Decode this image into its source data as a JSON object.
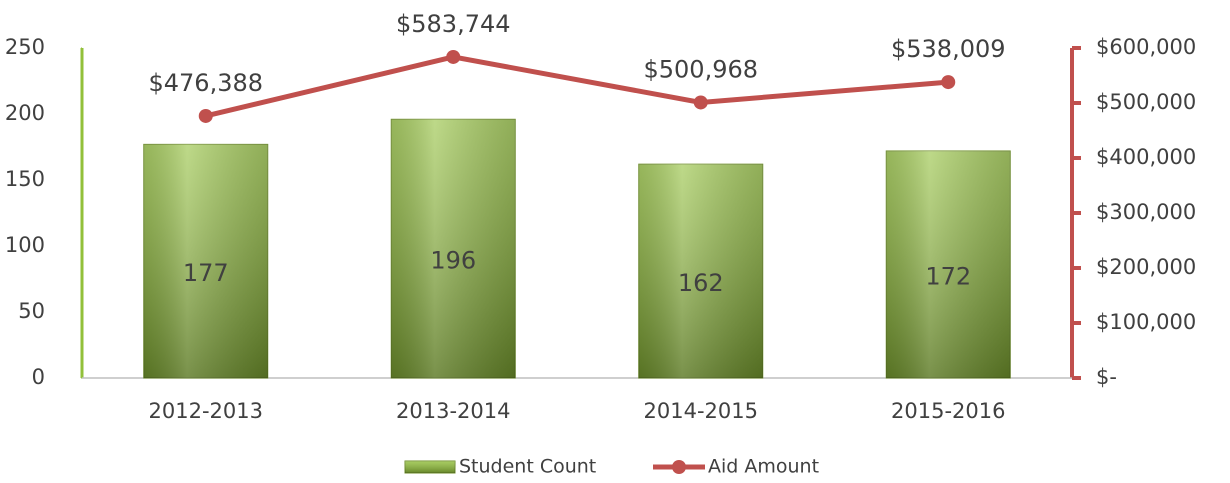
{
  "chart_data": {
    "type": "bar",
    "categories": [
      "2012-2013",
      "2013-2014",
      "2014-2015",
      "2015-2016"
    ],
    "series": [
      {
        "name": "Student Count",
        "type": "bar",
        "color": "#92c03a",
        "values": [
          177,
          196,
          162,
          172
        ]
      },
      {
        "name": "Aid Amount",
        "type": "line",
        "axis": "y2",
        "color": "#c0504d",
        "values": [
          476388,
          583744,
          500968,
          538009
        ],
        "value_labels": [
          "$476,388",
          "$583,744",
          "$500,968",
          "$538,009"
        ]
      }
    ],
    "ylim": [
      0,
      250
    ],
    "yticks": [
      0,
      50,
      100,
      150,
      200,
      250
    ],
    "y2lim": [
      0,
      600000
    ],
    "y2ticks": [
      {
        "value": 0,
        "label": "$-"
      },
      {
        "value": 100000,
        "label": "$100,000"
      },
      {
        "value": 200000,
        "label": "$200,000"
      },
      {
        "value": 300000,
        "label": "$300,000"
      },
      {
        "value": 400000,
        "label": "$400,000"
      },
      {
        "value": 500000,
        "label": "$500,000"
      },
      {
        "value": 600000,
        "label": "$600,000"
      }
    ],
    "legend": "bottom"
  }
}
